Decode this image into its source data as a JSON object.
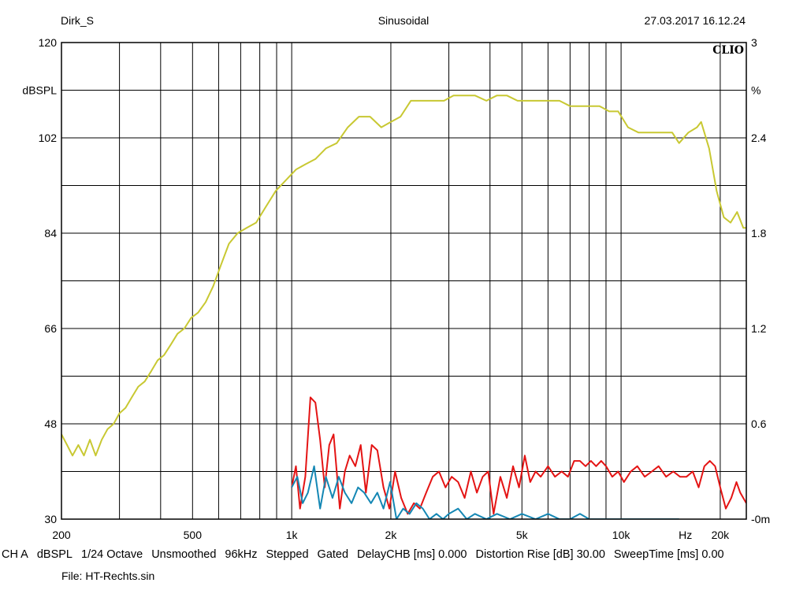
{
  "header": {
    "left": "Dirk_S",
    "center": "Sinusoidal",
    "right": "27.03.2017 16.12.24"
  },
  "brand": "CLIO",
  "status": {
    "items": [
      "CH A",
      "dBSPL",
      "1/24 Octave",
      "Unsmoothed",
      "96kHz",
      "Stepped",
      "Gated",
      "DelayCHB [ms] 0.000",
      "Distortion Rise [dB] 30.00",
      "SweepTime [ms] 0.00"
    ],
    "file": "File: HT-Rechts.sin"
  },
  "chart_data": {
    "type": "line",
    "x_scale": "log",
    "xlim": [
      200,
      24000
    ],
    "ylim": [
      30,
      120
    ],
    "y2lim": [
      0,
      3
    ],
    "y_ticks": [
      "120",
      "102",
      "84",
      "66",
      "48",
      "30"
    ],
    "ylabel": "dBSPL",
    "y2_ticks": [
      "3",
      "2.4",
      "1.8",
      "1.2",
      "0.6",
      "-0m"
    ],
    "y2label": "%",
    "x_ticks": [
      {
        "value": 200,
        "label": "200"
      },
      {
        "value": 500,
        "label": "500"
      },
      {
        "value": 1000,
        "label": "1k"
      },
      {
        "value": 2000,
        "label": "2k"
      },
      {
        "value": 5000,
        "label": "5k"
      },
      {
        "value": 10000,
        "label": "10k"
      },
      {
        "value": 20000,
        "label": "20k"
      }
    ],
    "x_unit_label": "Hz",
    "grid": true,
    "colors": {
      "yellow": "#c8c832",
      "red": "#e41414",
      "blue": "#1487b4",
      "grid": "#000000"
    },
    "series": [
      {
        "color_key": "yellow",
        "x": [
          200,
          208,
          216,
          225,
          234,
          244,
          254,
          265,
          276,
          288,
          300,
          313,
          327,
          342,
          358,
          375,
          392,
          410,
          430,
          450,
          472,
          495,
          520,
          548,
          578,
          610,
          645,
          685,
          730,
          780,
          835,
          895,
          960,
          1030,
          1100,
          1180,
          1270,
          1370,
          1480,
          1600,
          1730,
          1870,
          2000,
          2140,
          2300,
          2480,
          2680,
          2900,
          3100,
          3350,
          3600,
          3900,
          4200,
          4500,
          4850,
          5200,
          5600,
          6000,
          6500,
          7000,
          7500,
          8000,
          8600,
          9200,
          9800,
          10500,
          11300,
          12200,
          13200,
          14300,
          15000,
          16000,
          17000,
          17500,
          18500,
          19500,
          20500,
          21500,
          22500,
          23500,
          24000
        ],
        "y": [
          46,
          44,
          42,
          44,
          42,
          45,
          42,
          45,
          47,
          48,
          50,
          51,
          53,
          55,
          56,
          58,
          60,
          61,
          63,
          65,
          66,
          68,
          69,
          71,
          74,
          78,
          82,
          84,
          85,
          86,
          89,
          92,
          94,
          96,
          97,
          98,
          100,
          101,
          104,
          106,
          106,
          104,
          105,
          106,
          109,
          109,
          109,
          109,
          110,
          110,
          110,
          109,
          110,
          110,
          109,
          109,
          109,
          109,
          109,
          108,
          108,
          108,
          108,
          107,
          107,
          104,
          103,
          103,
          103,
          103,
          101,
          103,
          104,
          105,
          100,
          92,
          87,
          86,
          88,
          85,
          85
        ]
      },
      {
        "color_key": "red",
        "x": [
          1000,
          1030,
          1060,
          1100,
          1140,
          1180,
          1220,
          1260,
          1300,
          1340,
          1400,
          1450,
          1500,
          1560,
          1620,
          1680,
          1750,
          1820,
          1900,
          1980,
          2060,
          2150,
          2250,
          2350,
          2450,
          2560,
          2680,
          2800,
          2930,
          3060,
          3200,
          3350,
          3500,
          3650,
          3800,
          3950,
          4100,
          4300,
          4500,
          4700,
          4900,
          5100,
          5300,
          5500,
          5700,
          6000,
          6300,
          6600,
          6900,
          7200,
          7500,
          7800,
          8100,
          8400,
          8700,
          9000,
          9400,
          9800,
          10200,
          10700,
          11200,
          11800,
          12400,
          13000,
          13700,
          14400,
          15100,
          15800,
          16500,
          17200,
          17900,
          18600,
          19300,
          20000,
          20800,
          21600,
          22400,
          23000,
          24000
        ],
        "y": [
          36,
          40,
          32,
          38,
          53,
          52,
          45,
          36,
          44,
          46,
          32,
          39,
          42,
          40,
          44,
          35,
          44,
          43,
          36,
          32,
          39,
          34,
          31,
          33,
          32,
          35,
          38,
          39,
          36,
          38,
          37,
          34,
          39,
          35,
          38,
          39,
          31,
          38,
          34,
          40,
          36,
          42,
          37,
          39,
          38,
          40,
          38,
          39,
          38,
          41,
          41,
          40,
          41,
          40,
          41,
          40,
          38,
          39,
          37,
          39,
          40,
          38,
          39,
          40,
          38,
          39,
          38,
          38,
          39,
          36,
          40,
          41,
          40,
          36,
          32,
          34,
          37,
          35,
          33
        ]
      },
      {
        "color_key": "blue",
        "x": [
          1000,
          1040,
          1080,
          1120,
          1170,
          1220,
          1270,
          1330,
          1390,
          1450,
          1520,
          1590,
          1660,
          1740,
          1820,
          1900,
          1990,
          2080,
          2180,
          2280,
          2390,
          2500,
          2620,
          2750,
          2880,
          3000,
          3200,
          3400,
          3600,
          3900,
          4200,
          4600,
          5000,
          5500,
          6000,
          6500,
          7000,
          7500,
          8000,
          9000,
          10000,
          11000,
          12000,
          13000,
          14000,
          15000
        ],
        "y": [
          36,
          38,
          33,
          35,
          40,
          32,
          38,
          34,
          38,
          35,
          33,
          36,
          35,
          33,
          35,
          32,
          37,
          30,
          32,
          31,
          33,
          32,
          30,
          31,
          30,
          31,
          32,
          30,
          31,
          30,
          31,
          30,
          31,
          30,
          31,
          30,
          30,
          31,
          30,
          30,
          30,
          30,
          30,
          30,
          30,
          30
        ]
      }
    ]
  }
}
